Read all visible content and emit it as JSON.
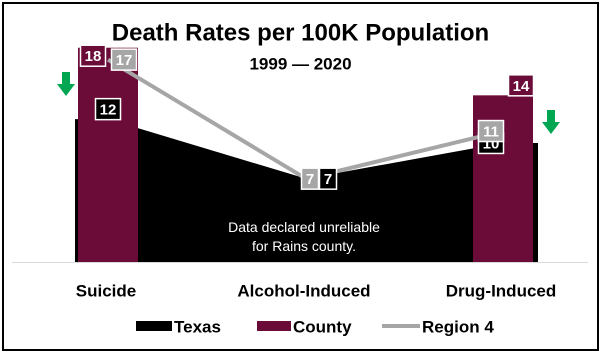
{
  "chart_data": {
    "type": "combo",
    "title": "Death Rates per 100K Population",
    "subtitle": "1999 — 2020",
    "categories": [
      "Suicide",
      "Alcohol-Induced",
      "Drug-Induced"
    ],
    "ylim": [
      0,
      21
    ],
    "series": [
      {
        "name": "Texas",
        "type": "area",
        "color": "#000000",
        "values": [
          12,
          7,
          10
        ],
        "labels": [
          "12",
          "7",
          "10"
        ]
      },
      {
        "name": "County",
        "type": "bar",
        "color": "#6b0b37",
        "values": [
          18,
          null,
          14
        ],
        "labels": [
          "18",
          "",
          "14"
        ]
      },
      {
        "name": "Region 4",
        "type": "line",
        "color": "#a6a6a6",
        "values": [
          17,
          7,
          11
        ],
        "labels": [
          "17",
          "7",
          "11"
        ]
      }
    ],
    "annotations": [
      {
        "category": "Alcohol-Induced",
        "text": "Data declared unreliable\nfor Rains county."
      }
    ],
    "trend_markers": [
      {
        "category": "Suicide",
        "direction": "down",
        "color": "#00a651"
      },
      {
        "category": "Drug-Induced",
        "direction": "down",
        "color": "#00a651"
      }
    ],
    "legend": {
      "placement": "bottom"
    },
    "grid": false
  }
}
